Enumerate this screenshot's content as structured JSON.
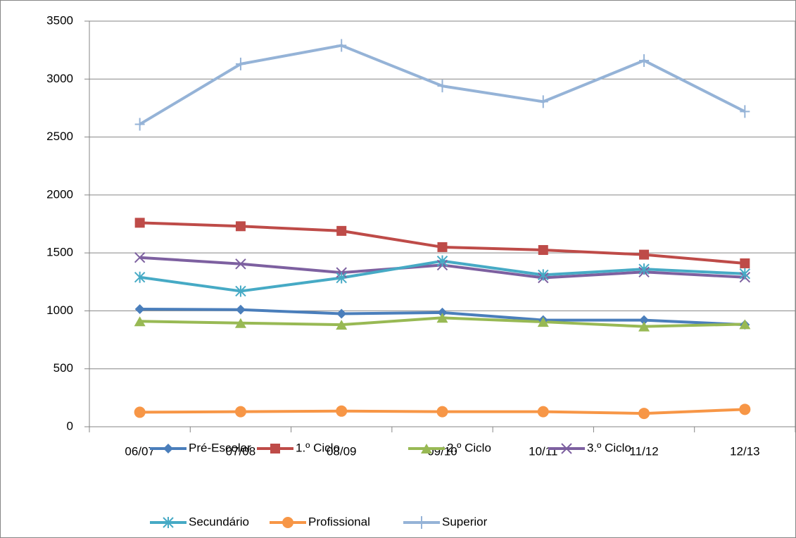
{
  "chart_data": {
    "type": "line",
    "categories": [
      "06/07",
      "07/08",
      "08/09",
      "09/10",
      "10/11",
      "11/12",
      "12/13"
    ],
    "series": [
      {
        "name": "Pré-Escolar",
        "color": "#4a7ebb",
        "marker": "diamond",
        "values": [
          1015,
          1010,
          975,
          985,
          920,
          920,
          880
        ]
      },
      {
        "name": "1.º Ciclo",
        "color": "#be4b48",
        "marker": "square",
        "values": [
          1760,
          1730,
          1690,
          1550,
          1525,
          1485,
          1410
        ]
      },
      {
        "name": "2.º Ciclo",
        "color": "#98b954",
        "marker": "triangle",
        "values": [
          910,
          895,
          880,
          940,
          905,
          865,
          885
        ]
      },
      {
        "name": "3.º Ciclo",
        "color": "#7d60a0",
        "marker": "x",
        "values": [
          1460,
          1405,
          1330,
          1395,
          1285,
          1335,
          1290
        ]
      },
      {
        "name": "Secundário",
        "color": "#46aac5",
        "marker": "asterisk",
        "values": [
          1290,
          1170,
          1285,
          1430,
          1310,
          1360,
          1320
        ]
      },
      {
        "name": "Profissional",
        "color": "#f79646",
        "marker": "circle",
        "values": [
          125,
          130,
          135,
          130,
          130,
          115,
          150
        ]
      },
      {
        "name": "Superior",
        "color": "#95b3d7",
        "marker": "plus",
        "values": [
          2610,
          3130,
          3290,
          2940,
          2805,
          3160,
          2720
        ]
      }
    ],
    "ylim": [
      0,
      3500
    ],
    "yticks": [
      0,
      500,
      1000,
      1500,
      2000,
      2500,
      3000,
      3500
    ],
    "grid": true,
    "legend": "bottom"
  }
}
